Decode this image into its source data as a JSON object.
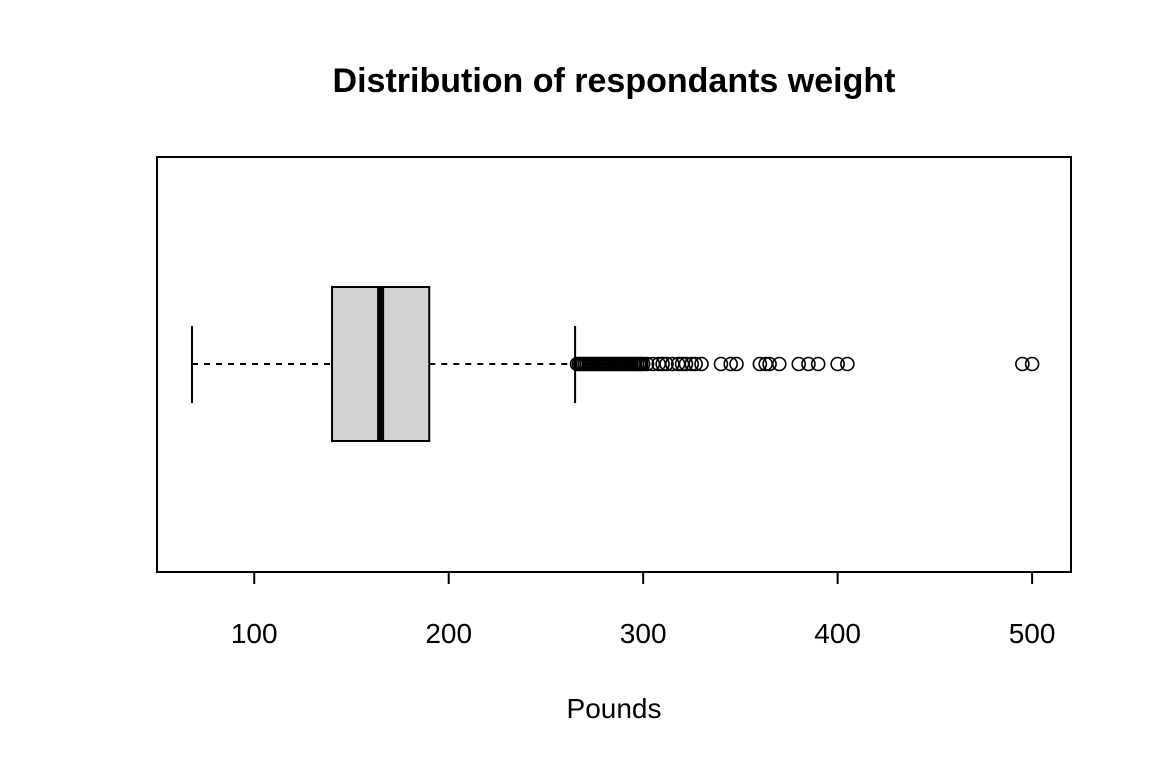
{
  "chart_data": {
    "type": "boxplot",
    "orientation": "horizontal",
    "title": "Distribution of respondants weight",
    "xlabel": "Pounds",
    "ylabel": "",
    "xlim": [
      50,
      520
    ],
    "xticks": [
      100,
      200,
      300,
      400,
      500
    ],
    "xtick_labels": [
      "100",
      "200",
      "300",
      "400",
      "500"
    ],
    "grid": false,
    "legend": "none",
    "box_fill": "#d3d3d3",
    "line_color": "#000000",
    "series": [
      {
        "whisker_low": 68,
        "q1": 140,
        "median": 165,
        "q3": 190,
        "whisker_high": 265,
        "outliers": [
          266,
          267,
          268,
          269,
          270,
          271,
          272,
          273,
          274,
          275,
          276,
          277,
          278,
          279,
          280,
          281,
          282,
          283,
          284,
          285,
          286,
          287,
          288,
          289,
          290,
          291,
          292,
          293,
          294,
          295,
          296,
          297,
          298,
          299,
          300,
          302,
          305,
          308,
          310,
          312,
          315,
          318,
          320,
          322,
          325,
          327,
          330,
          340,
          345,
          348,
          360,
          363,
          365,
          370,
          380,
          385,
          390,
          400,
          405,
          495,
          500
        ]
      }
    ]
  }
}
